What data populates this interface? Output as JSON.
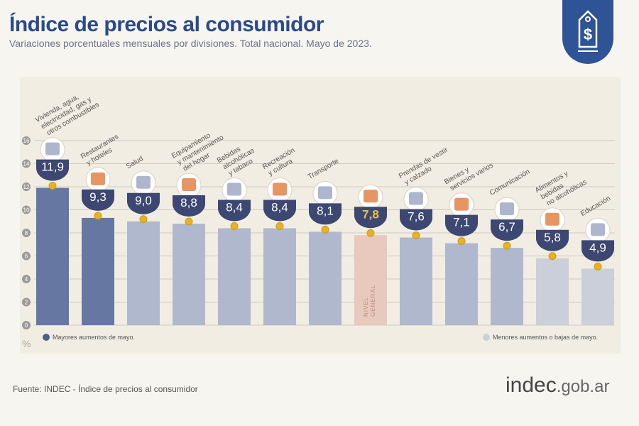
{
  "header": {
    "title": "Índice de precios al consumidor",
    "subtitle": "Variaciones porcentuales mensuales por divisiones. Total nacional. Mayo de 2023."
  },
  "logo_icon": "price-tag-dollar-icon",
  "colors": {
    "high": "#6677a2",
    "mid": "#b0b8cd",
    "low": "#cbcfd9",
    "general": "#e8c9bd",
    "badge": "#3c4772",
    "marker": "#e6b127",
    "title": "#2a4a8c"
  },
  "chart_data": {
    "type": "bar",
    "ylabel": "%",
    "ylim": [
      0,
      16
    ],
    "yticks": [
      0,
      2,
      4,
      6,
      8,
      10,
      12,
      14,
      16
    ],
    "grid": true,
    "categories": [
      "Vivienda, agua, electricidad, gas y otros combustibles",
      "Restaurantes y hoteles",
      "Salud",
      "Equipamiento y mantenimiento del hogar",
      "Bebidas alcohólicas y tabaco",
      "Recreación y cultura",
      "Transporte",
      "NIVEL GENERAL",
      "Prendas de vestir y calzado",
      "Bienes y servicios varios",
      "Comunicación",
      "Alimentos y bebidas no alcohólicas",
      "Educación"
    ],
    "category_lines": [
      [
        "Vivienda, agua,",
        "electricidad, gas y",
        "otros combustibles"
      ],
      [
        "Restaurantes",
        "y hoteles"
      ],
      [
        "Salud"
      ],
      [
        "Equipamiento",
        "y mantenimiento",
        "del hogar"
      ],
      [
        "Bebidas",
        "alcohólicas",
        "y tabaco"
      ],
      [
        "Recreación",
        "y cultura"
      ],
      [
        "Transporte"
      ],
      [],
      [
        "Prendas de vestir",
        "y calzado"
      ],
      [
        "Bienes y",
        "servicios varios"
      ],
      [
        "Comunicación"
      ],
      [
        "Alimentos y",
        "bebidas",
        "no alcohólicas"
      ],
      [
        "Educación"
      ]
    ],
    "values": [
      11.9,
      9.3,
      9.0,
      8.8,
      8.4,
      8.4,
      8.1,
      7.8,
      7.6,
      7.1,
      6.7,
      5.8,
      4.9
    ],
    "value_labels": [
      "11,9",
      "9,3",
      "9,0",
      "8,8",
      "8,4",
      "8,4",
      "8,1",
      "7,8",
      "7,6",
      "7,1",
      "6,7",
      "5,8",
      "4,9"
    ],
    "groups": [
      "high",
      "high",
      "mid",
      "mid",
      "mid",
      "mid",
      "mid",
      "general",
      "mid",
      "mid",
      "mid",
      "low",
      "low"
    ],
    "general_bar_label": [
      "NIVEL",
      "GENERAL"
    ],
    "legend": {
      "high": "Mayores aumentos de mayo.",
      "low": "Menores aumentos o bajas de mayo."
    }
  },
  "footer": {
    "source": "Fuente: INDEC - Índice de precios al consumidor",
    "brand": "indec",
    "domain": ".gob.ar"
  }
}
